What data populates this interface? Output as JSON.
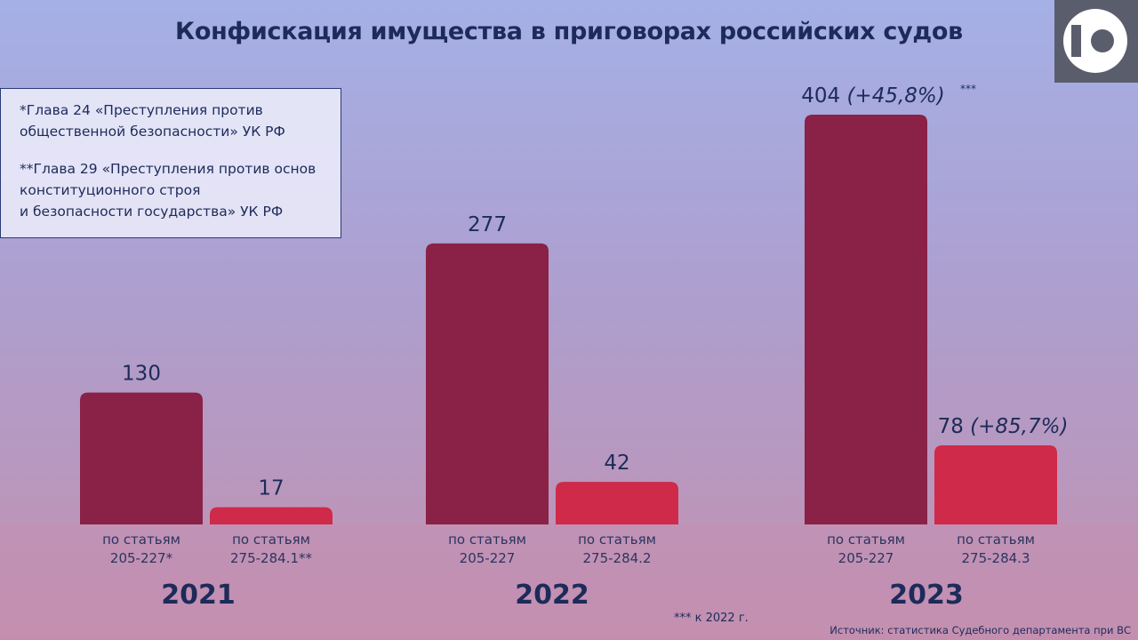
{
  "title": "Конфискация имущества в приговорах российских судов",
  "logo": {
    "icon": "logo-10-icon",
    "background": "#5a5e6c"
  },
  "notes": [
    {
      "lines": [
        "*Глава 24 «Преступления против",
        "общественной безопасности» УК РФ"
      ]
    },
    {
      "lines": [
        "**Глава 29 «Преступления против основ",
        "конституционного строя",
        "и безопасности государства» УК РФ"
      ]
    }
  ],
  "chart_data": {
    "type": "bar",
    "colors": {
      "dark": "#8a2146",
      "light": "#cf2a49"
    },
    "groups": [
      {
        "year": "2021",
        "bars": [
          {
            "value": 130,
            "label": "130",
            "suffix": "",
            "caption": [
              "по статьям",
              "205-227*"
            ],
            "color": "dark"
          },
          {
            "value": 17,
            "label": "17",
            "suffix": "",
            "caption": [
              "по статьям",
              "275-284.1**"
            ],
            "color": "light"
          }
        ]
      },
      {
        "year": "2022",
        "bars": [
          {
            "value": 277,
            "label": "277",
            "suffix": "",
            "caption": [
              "по статьям",
              "205-227"
            ],
            "color": "dark"
          },
          {
            "value": 42,
            "label": "42",
            "suffix": "",
            "caption": [
              "по статьям",
              "275-284.2"
            ],
            "color": "light"
          }
        ]
      },
      {
        "year": "2023",
        "bars": [
          {
            "value": 404,
            "label": "404 (+45,8%)",
            "suffix": "***",
            "caption": [
              "по статьям",
              "205-227"
            ],
            "color": "dark"
          },
          {
            "value": 78,
            "label": "78 (+85,7%)",
            "suffix": "",
            "caption": [
              "по статьям",
              "275-284.3"
            ],
            "color": "light"
          }
        ]
      }
    ]
  },
  "footnote": "*** к 2022 г.",
  "source": "Источник: статистика Судебного департамента при ВС"
}
